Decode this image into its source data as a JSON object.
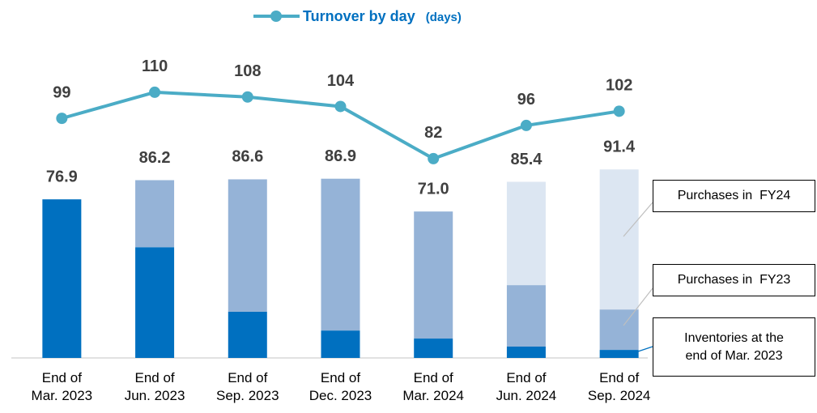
{
  "chart_data": {
    "type": "bar",
    "categories": [
      "End of Mar. 2023",
      "End of Jun. 2023",
      "End of Sep. 2023",
      "End of Dec. 2023",
      "End of Mar. 2024",
      "End of Jun. 2024",
      "End of Sep. 2024"
    ],
    "stacked": true,
    "series": [
      {
        "name": "Inventories at the end of Mar. 2023",
        "color": "#0070c0",
        "values": [
          76.9,
          53.7,
          22.4,
          13.3,
          9.4,
          5.5,
          3.9
        ]
      },
      {
        "name": "Purchases in  FY23",
        "color": "#95b3d7",
        "values": [
          null,
          32.5,
          64.2,
          73.6,
          61.6,
          29.8,
          19.6
        ]
      },
      {
        "name": "Purchases in  FY24",
        "color": "#dce6f2",
        "values": [
          null,
          null,
          null,
          null,
          null,
          50.1,
          67.9
        ]
      },
      {
        "type": "line",
        "name": "Turnover by day",
        "unit": "(days)",
        "color": "#4bacc6",
        "axis": "y2",
        "values": [
          99,
          110,
          108,
          104,
          82,
          96,
          102
        ]
      }
    ],
    "totals": {
      "values": [
        76.9,
        86.2,
        86.6,
        86.9,
        71.0,
        85.4,
        91.4
      ],
      "value_labels": [
        "76.9",
        "86.2",
        "86.6",
        "86.9",
        "71.0",
        "85.4",
        "91.4"
      ]
    },
    "ylim": [
      0,
      150
    ],
    "y2lim": [
      -2,
      128.4
    ],
    "legend": "top"
  }
}
